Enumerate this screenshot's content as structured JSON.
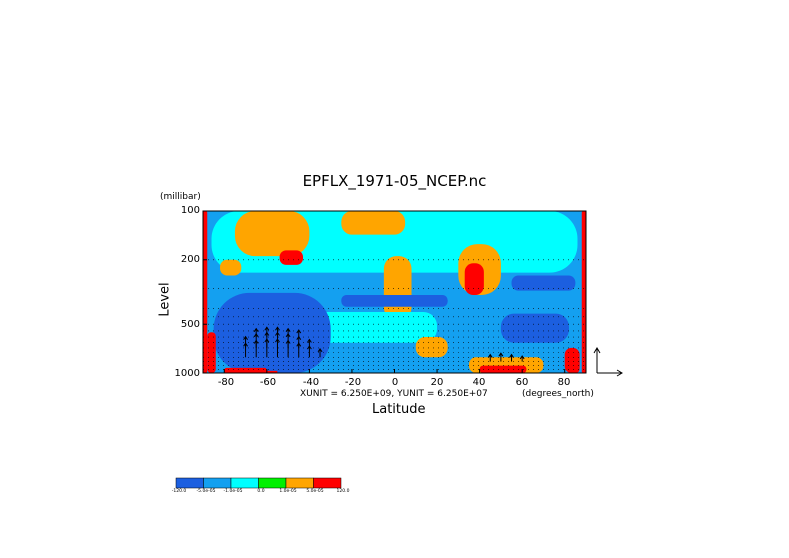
{
  "chart_data": {
    "type": "heatmap",
    "title": "EPFLX_1971-05_NCEP.nc",
    "xlabel": "Latitude",
    "x_unit": "(degrees_north)",
    "ylabel": "Level",
    "y_unit": "(millibar)",
    "y_scale": "log",
    "y_reversed": true,
    "xlim": [
      -90,
      90
    ],
    "ylim": [
      1000,
      100
    ],
    "x_ticks": [
      "-80",
      "-60",
      "-40",
      "-20",
      "0",
      "20",
      "40",
      "60",
      "80"
    ],
    "x_tick_values": [
      -80,
      -60,
      -40,
      -20,
      0,
      20,
      40,
      60,
      80
    ],
    "y_ticks": [
      "100",
      "200",
      "500",
      "1000"
    ],
    "y_tick_values": [
      100,
      200,
      500,
      1000
    ],
    "vector_scale_note": "XUNIT = 6.250E+09, YUNIT = 6.250E+07",
    "colorbar": {
      "labels": [
        "-120.0",
        "-5.0e-05",
        "-1.0e-05",
        "0.0",
        "1.0e-05",
        "5.0e-05",
        "120.0"
      ],
      "colors": [
        "#1c5fe0",
        "#14a0f0",
        "#00ffff",
        "#00f000",
        "#ffa500",
        "#ff0000"
      ]
    },
    "regions": [
      {
        "level": -2,
        "lat": [
          -90,
          90
        ],
        "p": [
          100,
          1000
        ]
      },
      {
        "level": -1,
        "lat": [
          -86,
          86
        ],
        "p": [
          100,
          240
        ]
      },
      {
        "level": 1,
        "lat": [
          -75,
          -40
        ],
        "p": [
          100,
          190
        ]
      },
      {
        "level": 1,
        "lat": [
          -25,
          5
        ],
        "p": [
          100,
          140
        ]
      },
      {
        "level": 1,
        "lat": [
          30,
          50
        ],
        "p": [
          160,
          330
        ]
      },
      {
        "level": 2,
        "lat": [
          33,
          42
        ],
        "p": [
          210,
          330
        ]
      },
      {
        "level": 2,
        "lat": [
          -54,
          -43
        ],
        "p": [
          175,
          215
        ]
      },
      {
        "level": 1,
        "lat": [
          -5,
          8
        ],
        "p": [
          190,
          470
        ]
      },
      {
        "level": -1,
        "lat": [
          -60,
          20
        ],
        "p": [
          420,
          650
        ]
      },
      {
        "level": 1,
        "lat": [
          -82,
          -72
        ],
        "p": [
          200,
          250
        ]
      },
      {
        "level": -3,
        "lat": [
          -85,
          -30
        ],
        "p": [
          320,
          1000
        ]
      },
      {
        "level": -3,
        "lat": [
          50,
          82
        ],
        "p": [
          430,
          650
        ]
      },
      {
        "level": -3,
        "lat": [
          -25,
          25
        ],
        "p": [
          330,
          390
        ]
      },
      {
        "level": -3,
        "lat": [
          55,
          85
        ],
        "p": [
          250,
          310
        ]
      },
      {
        "level": 1,
        "lat": [
          10,
          25
        ],
        "p": [
          600,
          800
        ]
      },
      {
        "level": 1,
        "lat": [
          35,
          70
        ],
        "p": [
          800,
          1000
        ]
      },
      {
        "level": 2,
        "lat": [
          40,
          62
        ],
        "p": [
          900,
          1000
        ]
      },
      {
        "level": 3,
        "lat": [
          43,
          58
        ],
        "p": [
          950,
          1000
        ]
      },
      {
        "level": 2,
        "lat": [
          -80,
          -60
        ],
        "p": [
          930,
          1000
        ]
      },
      {
        "level": 3,
        "lat": [
          -78,
          -70
        ],
        "p": [
          960,
          1000
        ]
      },
      {
        "level": 3,
        "lat": [
          -64,
          -55
        ],
        "p": [
          970,
          1000
        ]
      },
      {
        "level": 3,
        "lat": [
          -90,
          -88
        ],
        "p": [
          100,
          1000
        ]
      },
      {
        "level": 3,
        "lat": [
          88,
          90
        ],
        "p": [
          100,
          1000
        ]
      },
      {
        "level": 3,
        "lat": [
          -88,
          -84
        ],
        "p": [
          560,
          1000
        ]
      },
      {
        "level": 2,
        "lat": [
          80,
          87
        ],
        "p": [
          700,
          1000
        ]
      },
      {
        "level": 3,
        "lat": [
          83,
          87
        ],
        "p": [
          800,
          1000
        ]
      }
    ],
    "vectors": [
      {
        "lat": -70,
        "p": 800,
        "u": 0,
        "v": 1.0
      },
      {
        "lat": -65,
        "p": 800,
        "u": 0,
        "v": 1.2
      },
      {
        "lat": -60,
        "p": 800,
        "u": 0,
        "v": 1.3
      },
      {
        "lat": -55,
        "p": 800,
        "u": 0,
        "v": 1.3
      },
      {
        "lat": -50,
        "p": 800,
        "u": 0,
        "v": 1.2
      },
      {
        "lat": -45,
        "p": 800,
        "u": 0,
        "v": 1.0
      },
      {
        "lat": -40,
        "p": 800,
        "u": 0,
        "v": 0.8
      },
      {
        "lat": -35,
        "p": 800,
        "u": 0,
        "v": 0.6
      },
      {
        "lat": -70,
        "p": 700,
        "u": 0,
        "v": 0.8
      },
      {
        "lat": -65,
        "p": 700,
        "u": 0,
        "v": 1.0
      },
      {
        "lat": -60,
        "p": 700,
        "u": 0,
        "v": 1.1
      },
      {
        "lat": -55,
        "p": 700,
        "u": 0,
        "v": 1.1
      },
      {
        "lat": -50,
        "p": 700,
        "u": 0,
        "v": 1.0
      },
      {
        "lat": -45,
        "p": 700,
        "u": 0,
        "v": 0.8
      },
      {
        "lat": -40,
        "p": 700,
        "u": 0,
        "v": 0.6
      },
      {
        "lat": -65,
        "p": 600,
        "u": 0,
        "v": 0.6
      },
      {
        "lat": -60,
        "p": 600,
        "u": 0,
        "v": 0.7
      },
      {
        "lat": -55,
        "p": 600,
        "u": 0,
        "v": 0.7
      },
      {
        "lat": -50,
        "p": 600,
        "u": 0,
        "v": 0.6
      },
      {
        "lat": -45,
        "p": 600,
        "u": 0,
        "v": 0.5
      },
      {
        "lat": 45,
        "p": 850,
        "u": 0,
        "v": 0.5
      },
      {
        "lat": 50,
        "p": 850,
        "u": 0,
        "v": 0.6
      },
      {
        "lat": 55,
        "p": 850,
        "u": 0,
        "v": 0.5
      },
      {
        "lat": 60,
        "p": 850,
        "u": 0,
        "v": 0.4
      }
    ]
  }
}
